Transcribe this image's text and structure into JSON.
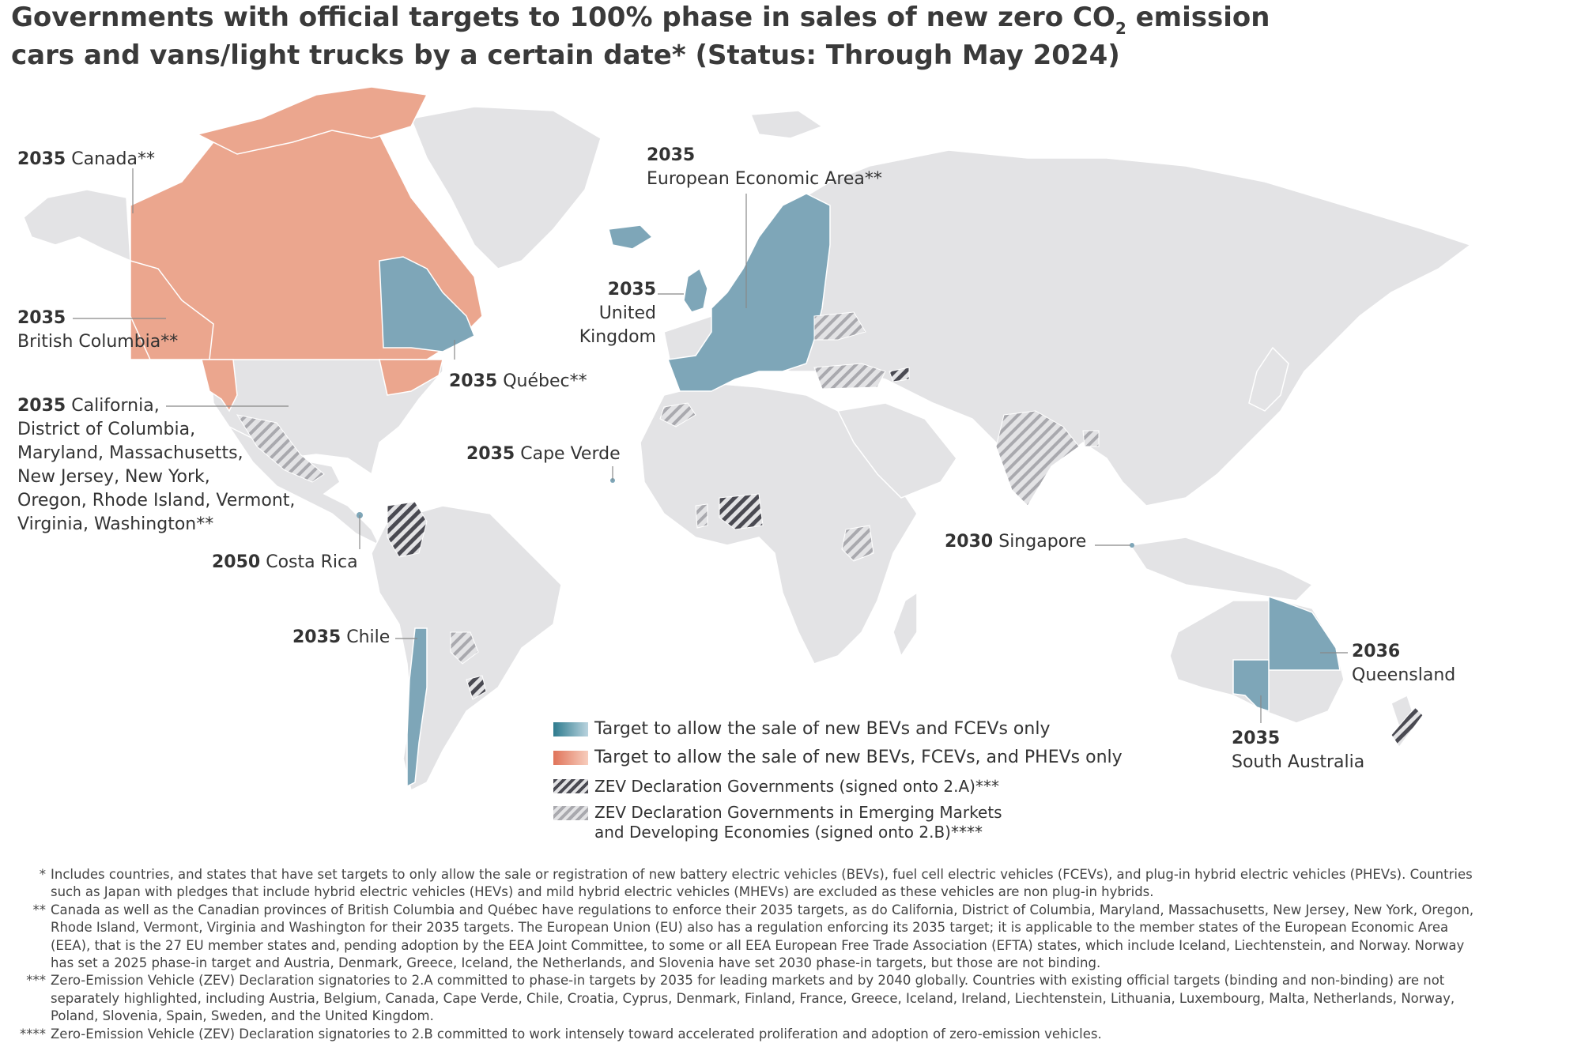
{
  "title": {
    "line1_pre": "Governments with official targets to 100% phase in sales of new zero CO",
    "line1_sub": "2",
    "line1_post": " emission",
    "line2": "cars and vans/light trucks by a certain date* (Status: Through May 2024)"
  },
  "labels": {
    "canada": {
      "year": "2035",
      "name": "Canada**"
    },
    "british_columbia": {
      "year": "2035",
      "name": "British Columbia**"
    },
    "california": {
      "year": "2035",
      "line1": "California,",
      "line2": "District of Columbia,",
      "line3": "Maryland, Massachusetts,",
      "line4": "New Jersey, New York,",
      "line5": "Oregon, Rhode Island, Vermont,",
      "line6": "Virginia, Washington**"
    },
    "quebec": {
      "year": "2035",
      "name": "Québec**"
    },
    "costa_rica": {
      "year": "2050",
      "name": "Costa Rica"
    },
    "cape_verde": {
      "year": "2035",
      "name": "Cape Verde"
    },
    "eea": {
      "year": "2035",
      "name": "European Economic Area**"
    },
    "uk": {
      "year": "2035",
      "line1": "United",
      "line2": "Kingdom"
    },
    "singapore": {
      "year": "2030",
      "name": "Singapore"
    },
    "chile": {
      "year": "2035",
      "name": "Chile"
    },
    "queensland": {
      "year": "2036",
      "name": "Queensland"
    },
    "south_australia": {
      "year": "2035",
      "name": "South Australia"
    }
  },
  "legend": {
    "bev_fcev": "Target to allow the sale of new BEVs and FCEVs only",
    "bev_fcev_phev": "Target to allow the sale of new BEVs, FCEVs, and PHEVs only",
    "zev_2a": "ZEV Declaration Governments (signed onto 2.A)***",
    "zev_2b_line1": "ZEV Declaration Governments in Emerging Markets",
    "zev_2b_line2": "and Developing Economies (signed onto 2.B)****"
  },
  "footnotes": [
    {
      "marker": "*",
      "text": "Includes countries, and states that have set targets to only allow the sale or registration of new battery electric vehicles (BEVs), fuel cell electric vehicles (FCEVs), and plug-in hybrid electric vehicles (PHEVs). Countries such as Japan with pledges that include hybrid electric vehicles (HEVs) and mild hybrid electric vehicles (MHEVs) are excluded as these vehicles are non plug-in hybrids."
    },
    {
      "marker": "**",
      "text": "Canada as well as the Canadian provinces of British Columbia and Québec have regulations to enforce their 2035 targets, as do California, District of Columbia, Maryland, Massachusetts, New Jersey, New York, Oregon, Rhode Island, Vermont, Virginia and Washington for their 2035 targets. The European Union (EU) also has a regulation enforcing its 2035 target; it is applicable to the member states of the European Economic Area (EEA), that is the 27 EU member states and, pending adoption by the EEA Joint Committee, to some or all EEA European Free Trade Association (EFTA) states, which include Iceland, Liechtenstein, and Norway. Norway has set a 2025 phase-in target and Austria, Denmark, Greece, Iceland, the Netherlands, and Slovenia have set 2030 phase-in targets, but those are not binding."
    },
    {
      "marker": "***",
      "text": "Zero-Emission Vehicle (ZEV) Declaration signatories to 2.A committed to phase-in targets by 2035 for leading markets and by 2040 globally. Countries with existing official targets (binding and non-binding) are not separately highlighted, including Austria, Belgium, Canada, Cape Verde, Chile, Croatia, Cyprus, Denmark, Finland, France, Greece, Iceland, Ireland, Liechtenstein, Lithuania, Luxembourg, Malta, Netherlands, Norway, Poland, Slovenia, Spain, Sweden, and the United Kingdom."
    },
    {
      "marker": "****",
      "text": "Zero-Emission Vehicle (ZEV) Declaration signatories to 2.B committed to work intensely toward accelerated proliferation and adoption of zero-emission vehicles."
    }
  ],
  "colors": {
    "land": "#e3e3e5",
    "blue": "#7ea6b8",
    "salmon": "#eba68e",
    "hatch_dark": "#4a4a52",
    "hatch_light": "#a9a9ae",
    "leader": "#888888"
  }
}
